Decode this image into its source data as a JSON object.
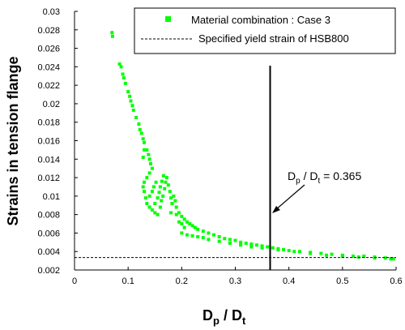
{
  "chart_data": {
    "type": "scatter",
    "xlabel": {
      "main": "D",
      "sub": "p",
      "sep": " / ",
      "main2": "D",
      "sub2": "t"
    },
    "ylabel": "Strains in tension flange",
    "xlim": [
      0,
      0.6
    ],
    "ylim": [
      0.002,
      0.03
    ],
    "x_ticks": [
      0,
      0.1,
      0.2,
      0.3,
      0.4,
      0.5,
      0.6
    ],
    "x_tick_labels": [
      "0",
      "0.1",
      "0.2",
      "0.3",
      "0.4",
      "0.5",
      "0.6"
    ],
    "y_ticks": [
      0.002,
      0.004,
      0.006,
      0.008,
      0.01,
      0.012,
      0.014,
      0.016,
      0.018,
      0.02,
      0.022,
      0.024,
      0.026,
      0.028,
      0.03
    ],
    "y_tick_labels": [
      "0.002",
      "0.004",
      "0.006",
      "0.008",
      "0.01",
      "0.012",
      "0.014",
      "0.016",
      "0.018",
      "0.02",
      "0.022",
      "0.024",
      "0.026",
      "0.028",
      "0.03"
    ],
    "grid": false,
    "legend_position": "top-right",
    "series": [
      {
        "name": "Material combination : Case 3",
        "kind": "scatter",
        "color": "#00ff00",
        "points": [
          [
            0.07,
            0.0277
          ],
          [
            0.071,
            0.0273
          ],
          [
            0.084,
            0.0243
          ],
          [
            0.087,
            0.024
          ],
          [
            0.09,
            0.0232
          ],
          [
            0.092,
            0.0228
          ],
          [
            0.095,
            0.0222
          ],
          [
            0.1,
            0.0213
          ],
          [
            0.103,
            0.0208
          ],
          [
            0.105,
            0.0203
          ],
          [
            0.108,
            0.0198
          ],
          [
            0.11,
            0.0193
          ],
          [
            0.115,
            0.0185
          ],
          [
            0.12,
            0.0178
          ],
          [
            0.122,
            0.0172
          ],
          [
            0.125,
            0.0168
          ],
          [
            0.128,
            0.0162
          ],
          [
            0.13,
            0.0158
          ],
          [
            0.13,
            0.015
          ],
          [
            0.128,
            0.0142
          ],
          [
            0.135,
            0.015
          ],
          [
            0.138,
            0.0145
          ],
          [
            0.14,
            0.014
          ],
          [
            0.142,
            0.0135
          ],
          [
            0.145,
            0.013
          ],
          [
            0.14,
            0.0125
          ],
          [
            0.135,
            0.012
          ],
          [
            0.13,
            0.0115
          ],
          [
            0.128,
            0.011
          ],
          [
            0.13,
            0.0105
          ],
          [
            0.133,
            0.0098
          ],
          [
            0.135,
            0.0092
          ],
          [
            0.14,
            0.0088
          ],
          [
            0.145,
            0.0085
          ],
          [
            0.15,
            0.0082
          ],
          [
            0.155,
            0.008
          ],
          [
            0.16,
            0.0088
          ],
          [
            0.162,
            0.0095
          ],
          [
            0.165,
            0.01
          ],
          [
            0.168,
            0.0108
          ],
          [
            0.17,
            0.0115
          ],
          [
            0.172,
            0.012
          ],
          [
            0.175,
            0.0112
          ],
          [
            0.178,
            0.0105
          ],
          [
            0.18,
            0.0098
          ],
          [
            0.182,
            0.0092
          ],
          [
            0.185,
            0.01
          ],
          [
            0.188,
            0.0095
          ],
          [
            0.19,
            0.0088
          ],
          [
            0.195,
            0.0082
          ],
          [
            0.2,
            0.0078
          ],
          [
            0.205,
            0.0075
          ],
          [
            0.21,
            0.0072
          ],
          [
            0.215,
            0.007
          ],
          [
            0.22,
            0.0068
          ],
          [
            0.225,
            0.0066
          ],
          [
            0.23,
            0.0064
          ],
          [
            0.24,
            0.0062
          ],
          [
            0.25,
            0.006
          ],
          [
            0.26,
            0.0058
          ],
          [
            0.27,
            0.0056
          ],
          [
            0.28,
            0.0054
          ],
          [
            0.29,
            0.0053
          ],
          [
            0.3,
            0.0052
          ],
          [
            0.31,
            0.005
          ],
          [
            0.32,
            0.0049
          ],
          [
            0.33,
            0.0048
          ],
          [
            0.34,
            0.0047
          ],
          [
            0.35,
            0.0046
          ],
          [
            0.36,
            0.0045
          ],
          [
            0.37,
            0.0044
          ],
          [
            0.38,
            0.0043
          ],
          [
            0.39,
            0.0042
          ],
          [
            0.4,
            0.0041
          ],
          [
            0.42,
            0.004
          ],
          [
            0.44,
            0.0039
          ],
          [
            0.46,
            0.0038
          ],
          [
            0.48,
            0.0037
          ],
          [
            0.5,
            0.0036
          ],
          [
            0.52,
            0.0035
          ],
          [
            0.54,
            0.0035
          ],
          [
            0.56,
            0.0034
          ],
          [
            0.58,
            0.0033
          ],
          [
            0.595,
            0.0032
          ],
          [
            0.2,
            0.006
          ],
          [
            0.21,
            0.0058
          ],
          [
            0.22,
            0.0057
          ],
          [
            0.23,
            0.0056
          ],
          [
            0.24,
            0.0055
          ],
          [
            0.25,
            0.0053
          ],
          [
            0.27,
            0.0051
          ],
          [
            0.29,
            0.0049
          ],
          [
            0.31,
            0.0047
          ],
          [
            0.33,
            0.0045
          ],
          [
            0.35,
            0.0044
          ],
          [
            0.38,
            0.0042
          ],
          [
            0.41,
            0.004
          ],
          [
            0.44,
            0.0038
          ],
          [
            0.47,
            0.0036
          ],
          [
            0.5,
            0.0035
          ],
          [
            0.53,
            0.0034
          ],
          [
            0.56,
            0.0033
          ],
          [
            0.59,
            0.0032
          ],
          [
            0.15,
            0.0092
          ],
          [
            0.155,
            0.0098
          ],
          [
            0.158,
            0.0104
          ],
          [
            0.16,
            0.011
          ],
          [
            0.163,
            0.0116
          ],
          [
            0.166,
            0.0122
          ],
          [
            0.148,
            0.011
          ],
          [
            0.152,
            0.0115
          ],
          [
            0.145,
            0.0105
          ],
          [
            0.14,
            0.01
          ],
          [
            0.18,
            0.0082
          ],
          [
            0.19,
            0.008
          ],
          [
            0.2,
            0.007
          ],
          [
            0.205,
            0.0066
          ],
          [
            0.195,
            0.0072
          ]
        ]
      },
      {
        "name": "Specified yield strain of HSB800",
        "kind": "hline",
        "y": 0.00335,
        "color": "#000000"
      }
    ],
    "vline": {
      "x": 0.365
    },
    "annotation": {
      "main": "D",
      "sub": "p",
      "sep": " / ",
      "main2": "D",
      "sub2": "t",
      "value": " = 0.365"
    }
  }
}
